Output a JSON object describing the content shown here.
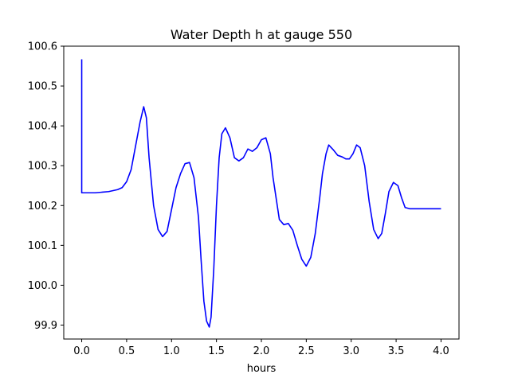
{
  "chart_data": {
    "type": "line",
    "title": "Water Depth h at gauge 550",
    "xlabel": "hours",
    "ylabel": "",
    "xlim": [
      -0.2,
      4.2
    ],
    "ylim": [
      99.865,
      100.6
    ],
    "xticks": [
      0.0,
      0.5,
      1.0,
      1.5,
      2.0,
      2.5,
      3.0,
      3.5,
      4.0
    ],
    "xtick_labels": [
      "0.0",
      "0.5",
      "1.0",
      "1.5",
      "2.0",
      "2.5",
      "3.0",
      "3.5",
      "4.0"
    ],
    "yticks": [
      99.9,
      100.0,
      100.1,
      100.2,
      100.3,
      100.4,
      100.5,
      100.6
    ],
    "ytick_labels": [
      "99.9",
      "100.0",
      "100.1",
      "100.2",
      "100.3",
      "100.4",
      "100.5",
      "100.6"
    ],
    "grid": false,
    "legend": "none",
    "series": [
      {
        "color": "#0000ff",
        "x": [
          0.0,
          0.0,
          0.0,
          0.15,
          0.3,
          0.4,
          0.45,
          0.5,
          0.55,
          0.6,
          0.65,
          0.69,
          0.72,
          0.75,
          0.8,
          0.85,
          0.9,
          0.95,
          1.0,
          1.05,
          1.1,
          1.15,
          1.2,
          1.25,
          1.3,
          1.33,
          1.36,
          1.39,
          1.42,
          1.44,
          1.47,
          1.5,
          1.53,
          1.56,
          1.6,
          1.65,
          1.7,
          1.75,
          1.8,
          1.85,
          1.9,
          1.95,
          2.0,
          2.05,
          2.1,
          2.13,
          2.17,
          2.2,
          2.25,
          2.3,
          2.35,
          2.4,
          2.45,
          2.5,
          2.55,
          2.6,
          2.65,
          2.68,
          2.72,
          2.75,
          2.8,
          2.85,
          2.9,
          2.94,
          2.98,
          3.02,
          3.06,
          3.1,
          3.15,
          3.2,
          3.25,
          3.3,
          3.34,
          3.38,
          3.42,
          3.47,
          3.52,
          3.56,
          3.6,
          3.65,
          3.7,
          3.75,
          3.8,
          3.85,
          3.9,
          3.95,
          4.0
        ],
        "y": [
          100.567,
          100.3,
          100.232,
          100.232,
          100.235,
          100.24,
          100.245,
          100.26,
          100.29,
          100.35,
          100.41,
          100.448,
          100.42,
          100.32,
          100.2,
          100.14,
          100.122,
          100.135,
          100.19,
          100.245,
          100.28,
          100.305,
          100.308,
          100.27,
          100.17,
          100.06,
          99.96,
          99.91,
          99.895,
          99.92,
          100.04,
          100.2,
          100.32,
          100.38,
          100.395,
          100.37,
          100.32,
          100.312,
          100.32,
          100.342,
          100.336,
          100.345,
          100.365,
          100.37,
          100.33,
          100.27,
          100.21,
          100.165,
          100.152,
          100.155,
          100.138,
          100.1,
          100.065,
          100.048,
          100.07,
          100.13,
          100.22,
          100.28,
          100.33,
          100.352,
          100.34,
          100.326,
          100.322,
          100.317,
          100.317,
          100.33,
          100.352,
          100.345,
          100.3,
          100.21,
          100.14,
          100.117,
          100.13,
          100.18,
          100.235,
          100.258,
          100.25,
          100.22,
          100.195,
          100.192,
          100.192,
          100.192,
          100.192,
          100.192,
          100.192,
          100.192,
          100.192
        ]
      }
    ]
  }
}
